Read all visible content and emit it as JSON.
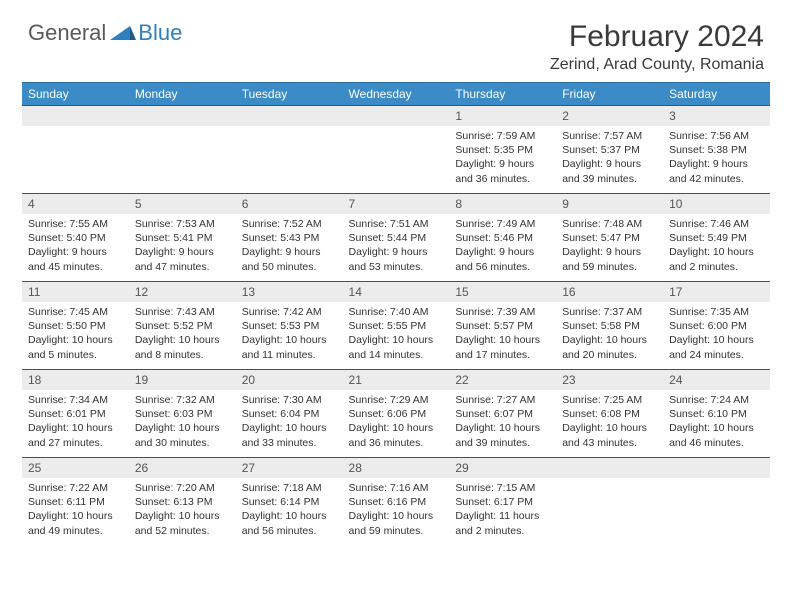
{
  "brand": {
    "part1": "General",
    "part2": "Blue"
  },
  "title": "February 2024",
  "location": "Zerind, Arad County, Romania",
  "colors": {
    "header_bg": "#3b8bc6",
    "header_text": "#ffffff",
    "daynum_bg": "#ececec",
    "border": "#1f5a8a",
    "logo_gray": "#5a5a5a",
    "logo_blue": "#2f7fbf"
  },
  "day_headers": [
    "Sunday",
    "Monday",
    "Tuesday",
    "Wednesday",
    "Thursday",
    "Friday",
    "Saturday"
  ],
  "weeks": [
    [
      {
        "n": "",
        "sr": "",
        "ss": "",
        "dl": ""
      },
      {
        "n": "",
        "sr": "",
        "ss": "",
        "dl": ""
      },
      {
        "n": "",
        "sr": "",
        "ss": "",
        "dl": ""
      },
      {
        "n": "",
        "sr": "",
        "ss": "",
        "dl": ""
      },
      {
        "n": "1",
        "sr": "Sunrise: 7:59 AM",
        "ss": "Sunset: 5:35 PM",
        "dl": "Daylight: 9 hours and 36 minutes."
      },
      {
        "n": "2",
        "sr": "Sunrise: 7:57 AM",
        "ss": "Sunset: 5:37 PM",
        "dl": "Daylight: 9 hours and 39 minutes."
      },
      {
        "n": "3",
        "sr": "Sunrise: 7:56 AM",
        "ss": "Sunset: 5:38 PM",
        "dl": "Daylight: 9 hours and 42 minutes."
      }
    ],
    [
      {
        "n": "4",
        "sr": "Sunrise: 7:55 AM",
        "ss": "Sunset: 5:40 PM",
        "dl": "Daylight: 9 hours and 45 minutes."
      },
      {
        "n": "5",
        "sr": "Sunrise: 7:53 AM",
        "ss": "Sunset: 5:41 PM",
        "dl": "Daylight: 9 hours and 47 minutes."
      },
      {
        "n": "6",
        "sr": "Sunrise: 7:52 AM",
        "ss": "Sunset: 5:43 PM",
        "dl": "Daylight: 9 hours and 50 minutes."
      },
      {
        "n": "7",
        "sr": "Sunrise: 7:51 AM",
        "ss": "Sunset: 5:44 PM",
        "dl": "Daylight: 9 hours and 53 minutes."
      },
      {
        "n": "8",
        "sr": "Sunrise: 7:49 AM",
        "ss": "Sunset: 5:46 PM",
        "dl": "Daylight: 9 hours and 56 minutes."
      },
      {
        "n": "9",
        "sr": "Sunrise: 7:48 AM",
        "ss": "Sunset: 5:47 PM",
        "dl": "Daylight: 9 hours and 59 minutes."
      },
      {
        "n": "10",
        "sr": "Sunrise: 7:46 AM",
        "ss": "Sunset: 5:49 PM",
        "dl": "Daylight: 10 hours and 2 minutes."
      }
    ],
    [
      {
        "n": "11",
        "sr": "Sunrise: 7:45 AM",
        "ss": "Sunset: 5:50 PM",
        "dl": "Daylight: 10 hours and 5 minutes."
      },
      {
        "n": "12",
        "sr": "Sunrise: 7:43 AM",
        "ss": "Sunset: 5:52 PM",
        "dl": "Daylight: 10 hours and 8 minutes."
      },
      {
        "n": "13",
        "sr": "Sunrise: 7:42 AM",
        "ss": "Sunset: 5:53 PM",
        "dl": "Daylight: 10 hours and 11 minutes."
      },
      {
        "n": "14",
        "sr": "Sunrise: 7:40 AM",
        "ss": "Sunset: 5:55 PM",
        "dl": "Daylight: 10 hours and 14 minutes."
      },
      {
        "n": "15",
        "sr": "Sunrise: 7:39 AM",
        "ss": "Sunset: 5:57 PM",
        "dl": "Daylight: 10 hours and 17 minutes."
      },
      {
        "n": "16",
        "sr": "Sunrise: 7:37 AM",
        "ss": "Sunset: 5:58 PM",
        "dl": "Daylight: 10 hours and 20 minutes."
      },
      {
        "n": "17",
        "sr": "Sunrise: 7:35 AM",
        "ss": "Sunset: 6:00 PM",
        "dl": "Daylight: 10 hours and 24 minutes."
      }
    ],
    [
      {
        "n": "18",
        "sr": "Sunrise: 7:34 AM",
        "ss": "Sunset: 6:01 PM",
        "dl": "Daylight: 10 hours and 27 minutes."
      },
      {
        "n": "19",
        "sr": "Sunrise: 7:32 AM",
        "ss": "Sunset: 6:03 PM",
        "dl": "Daylight: 10 hours and 30 minutes."
      },
      {
        "n": "20",
        "sr": "Sunrise: 7:30 AM",
        "ss": "Sunset: 6:04 PM",
        "dl": "Daylight: 10 hours and 33 minutes."
      },
      {
        "n": "21",
        "sr": "Sunrise: 7:29 AM",
        "ss": "Sunset: 6:06 PM",
        "dl": "Daylight: 10 hours and 36 minutes."
      },
      {
        "n": "22",
        "sr": "Sunrise: 7:27 AM",
        "ss": "Sunset: 6:07 PM",
        "dl": "Daylight: 10 hours and 39 minutes."
      },
      {
        "n": "23",
        "sr": "Sunrise: 7:25 AM",
        "ss": "Sunset: 6:08 PM",
        "dl": "Daylight: 10 hours and 43 minutes."
      },
      {
        "n": "24",
        "sr": "Sunrise: 7:24 AM",
        "ss": "Sunset: 6:10 PM",
        "dl": "Daylight: 10 hours and 46 minutes."
      }
    ],
    [
      {
        "n": "25",
        "sr": "Sunrise: 7:22 AM",
        "ss": "Sunset: 6:11 PM",
        "dl": "Daylight: 10 hours and 49 minutes."
      },
      {
        "n": "26",
        "sr": "Sunrise: 7:20 AM",
        "ss": "Sunset: 6:13 PM",
        "dl": "Daylight: 10 hours and 52 minutes."
      },
      {
        "n": "27",
        "sr": "Sunrise: 7:18 AM",
        "ss": "Sunset: 6:14 PM",
        "dl": "Daylight: 10 hours and 56 minutes."
      },
      {
        "n": "28",
        "sr": "Sunrise: 7:16 AM",
        "ss": "Sunset: 6:16 PM",
        "dl": "Daylight: 10 hours and 59 minutes."
      },
      {
        "n": "29",
        "sr": "Sunrise: 7:15 AM",
        "ss": "Sunset: 6:17 PM",
        "dl": "Daylight: 11 hours and 2 minutes."
      },
      {
        "n": "",
        "sr": "",
        "ss": "",
        "dl": ""
      },
      {
        "n": "",
        "sr": "",
        "ss": "",
        "dl": ""
      }
    ]
  ]
}
